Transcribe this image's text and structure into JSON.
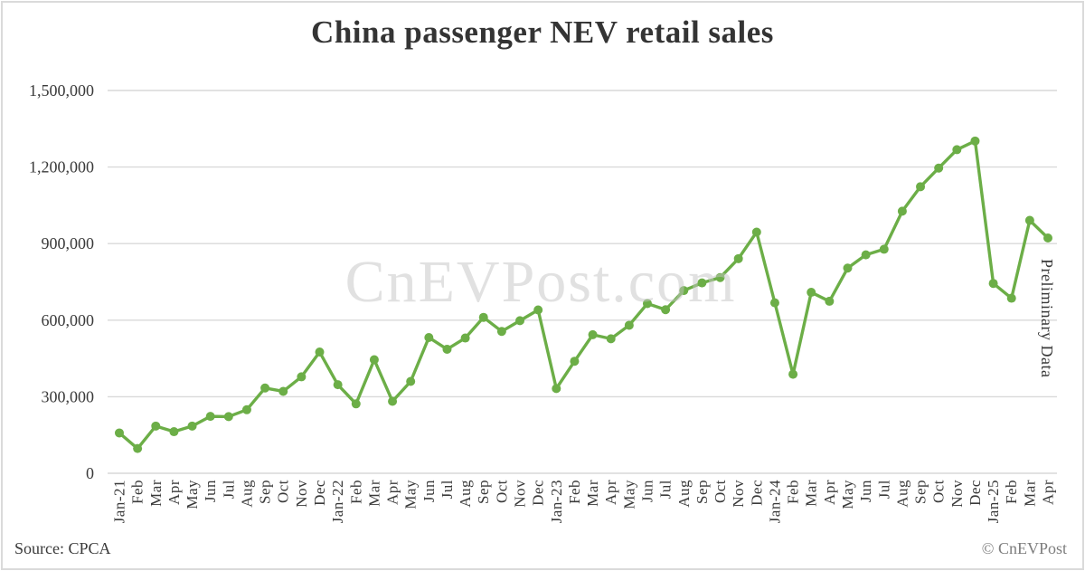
{
  "title": "China passenger NEV retail sales",
  "watermark": "CnEVPost.com",
  "annotation": "Preliminary Data",
  "footer": {
    "source": "Source: CPCA",
    "copyright": "© CnEVPost"
  },
  "colors": {
    "line": "#6cae47",
    "marker": "#6cae47",
    "grid": "#d9d9d9",
    "axis_text": "#3a3a3a",
    "title_text": "#343434",
    "copyright_text": "#7d7d7d"
  },
  "chart_data": {
    "type": "line",
    "title": "China passenger NEV retail sales",
    "xlabel": "",
    "ylabel": "",
    "ylim": [
      0,
      1500000
    ],
    "grid": true,
    "legend": false,
    "yticks": [
      0,
      300000,
      600000,
      900000,
      1200000,
      1500000
    ],
    "ytick_labels": [
      "0",
      "300,000",
      "600,000",
      "900,000",
      "1,200,000",
      "1,500,000"
    ],
    "categories": [
      "Jan-21",
      "Feb",
      "Mar",
      "Apr",
      "May",
      "Jun",
      "Jul",
      "Aug",
      "Sep",
      "Oct",
      "Nov",
      "Dec",
      "Jan-22",
      "Feb",
      "Mar",
      "Apr",
      "May",
      "Jun",
      "Jul",
      "Aug",
      "Sep",
      "Oct",
      "Nov",
      "Dec",
      "Jan-23",
      "Feb",
      "Mar",
      "Apr",
      "May",
      "Jun",
      "Jul",
      "Aug",
      "Sep",
      "Oct",
      "Nov",
      "Dec",
      "Jan-24",
      "Feb",
      "Mar",
      "Apr",
      "May",
      "Jun",
      "Jul",
      "Aug",
      "Sep",
      "Oct",
      "Nov",
      "Dec",
      "Jan-25",
      "Feb",
      "Mar",
      "Apr"
    ],
    "series": [
      {
        "name": "China passenger NEV retail sales",
        "values": [
          158000,
          97000,
          185000,
          163000,
          185000,
          223000,
          222000,
          249000,
          334000,
          321000,
          378000,
          475000,
          347000,
          272000,
          445000,
          282000,
          360000,
          532000,
          486000,
          530000,
          611000,
          556000,
          598000,
          640000,
          332000,
          439000,
          543000,
          527000,
          580000,
          665000,
          641000,
          716000,
          746000,
          767000,
          841000,
          945000,
          668000,
          388000,
          709000,
          674000,
          804000,
          856000,
          878000,
          1027000,
          1123000,
          1196000,
          1268000,
          1302000,
          744000,
          686000,
          991000,
          922000
        ]
      }
    ],
    "annotation": {
      "text": "Preliminary Data",
      "applies_to": "Apr"
    }
  }
}
